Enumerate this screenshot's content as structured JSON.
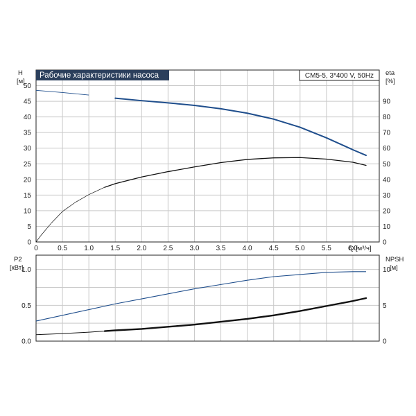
{
  "chart_data": [
    {
      "type": "line",
      "title": "Рабочие характеристики насоса",
      "subtitle": "CM5-5, 3*400 V, 50Hz",
      "colors": {
        "title_bg": "#2b3f5c",
        "title_text": "#ffffff",
        "head_curve": "#1f4e8c",
        "eta_curve": "#111111"
      },
      "left_axis": {
        "label": "H",
        "unit": "[м]",
        "ticks": [
          "0",
          "5",
          "10",
          "15",
          "20",
          "25",
          "30",
          "35",
          "40",
          "45",
          "50"
        ],
        "range": [
          0,
          55
        ]
      },
      "right_axis": {
        "label": "eta",
        "unit": "[%]",
        "ticks": [
          "0",
          "10",
          "20",
          "30",
          "40",
          "50",
          "60",
          "70",
          "80",
          "90"
        ],
        "range": [
          0,
          110
        ]
      },
      "x_axis": {
        "label": "Q [м³/ч]",
        "ticks": [
          "0",
          "0.5",
          "1.0",
          "1.5",
          "2.0",
          "2.5",
          "3.0",
          "3.5",
          "4.0",
          "4.5",
          "5.0",
          "5.5",
          "6.0"
        ],
        "range": [
          0,
          6.5
        ]
      },
      "grid": true,
      "series": [
        {
          "axis": "left",
          "x": [
            0,
            0.5,
            1.0,
            1.5,
            2.0,
            2.5,
            3.0,
            3.5,
            4.0,
            4.5,
            5.0,
            5.5,
            6.0,
            6.25
          ],
          "values": [
            48.5,
            47.8,
            47.0,
            46.0,
            45.2,
            44.5,
            43.7,
            42.6,
            41.2,
            39.3,
            36.7,
            33.3,
            29.5,
            27.7
          ],
          "duty_from": 1.3
        },
        {
          "axis": "right",
          "x": [
            0,
            0.1,
            0.3,
            0.5,
            0.75,
            1.0,
            1.3,
            1.5,
            2.0,
            2.5,
            3.0,
            3.5,
            4.0,
            4.5,
            5.0,
            5.5,
            6.0,
            6.25
          ],
          "values": [
            0,
            4.5,
            12.5,
            19.5,
            25.5,
            30.3,
            35,
            37.3,
            41.6,
            45,
            48,
            50.8,
            52.8,
            53.8,
            54,
            53,
            51,
            49
          ],
          "duty_from": 1.3
        }
      ]
    },
    {
      "type": "line",
      "left_axis": {
        "label": "P2",
        "unit": "[кВт]",
        "ticks": [
          "0.0",
          "0.5",
          "1.0"
        ],
        "range": [
          0,
          1.2
        ]
      },
      "right_axis": {
        "label": "NPSH",
        "unit": "[м]",
        "ticks": [
          "0",
          "5",
          "10"
        ],
        "range": [
          0,
          12
        ]
      },
      "x_range": [
        0,
        6.5
      ],
      "grid": true,
      "series": [
        {
          "axis": "left",
          "x": [
            0,
            0.5,
            1.0,
            1.5,
            2.0,
            2.5,
            3.0,
            3.5,
            4.0,
            4.5,
            5.0,
            5.5,
            6.0,
            6.25
          ],
          "values": [
            0.28,
            0.36,
            0.44,
            0.52,
            0.59,
            0.66,
            0.73,
            0.79,
            0.85,
            0.9,
            0.93,
            0.96,
            0.97,
            0.97
          ],
          "color": "#1f4e8c"
        },
        {
          "axis": "right",
          "x": [
            0,
            0.5,
            1.0,
            1.3,
            1.5,
            2.0,
            2.5,
            3.0,
            3.5,
            4.0,
            4.5,
            5.0,
            5.5,
            6.0,
            6.25
          ],
          "values": [
            0.9,
            1.05,
            1.25,
            1.4,
            1.5,
            1.7,
            2.0,
            2.3,
            2.7,
            3.1,
            3.6,
            4.2,
            4.9,
            5.6,
            6.0
          ],
          "duty_from": 1.3,
          "color": "#111111"
        }
      ]
    }
  ]
}
